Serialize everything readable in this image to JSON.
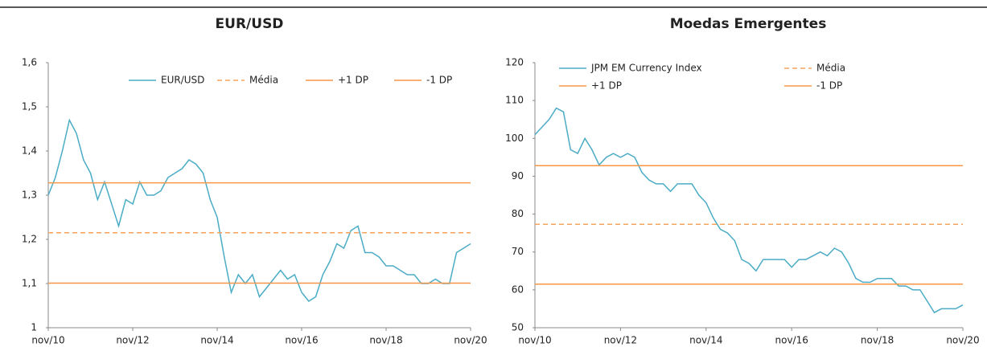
{
  "chart_data": [
    {
      "type": "line",
      "title": "EUR/USD",
      "categories": [
        "nov/10",
        null,
        null,
        null,
        null,
        null,
        null,
        null,
        null,
        null,
        null,
        null,
        "nov/12",
        null,
        null,
        null,
        null,
        null,
        null,
        null,
        null,
        null,
        null,
        null,
        "nov/14",
        null,
        null,
        null,
        null,
        null,
        null,
        null,
        null,
        null,
        null,
        null,
        "nov/16",
        null,
        null,
        null,
        null,
        null,
        null,
        null,
        null,
        null,
        null,
        null,
        "nov/18",
        null,
        null,
        null,
        null,
        null,
        null,
        null,
        null,
        null,
        null,
        null,
        "nov/20"
      ],
      "ylim": [
        1,
        1.6
      ],
      "yticks": [
        1,
        {
          "value": 1.1,
          "label": "1,1"
        },
        {
          "value": 1.2,
          "label": "1,2"
        },
        {
          "value": 1.3,
          "label": "1,3"
        },
        {
          "value": 1.4,
          "label": "1,4"
        },
        {
          "value": 1.5,
          "label": "1,5"
        },
        {
          "value": 1.6,
          "label": "1,6"
        }
      ],
      "legend": "top-right",
      "series": [
        {
          "name": "EUR/USD",
          "color": "#4bacc6",
          "dashed": false,
          "values": [
            1.3,
            1.34,
            1.4,
            1.47,
            1.44,
            1.38,
            1.35,
            1.29,
            1.33,
            1.28,
            1.23,
            1.29,
            1.28,
            1.33,
            1.3,
            1.3,
            1.31,
            1.34,
            1.35,
            1.36,
            1.38,
            1.37,
            1.35,
            1.29,
            1.25,
            1.16,
            1.08,
            1.12,
            1.1,
            1.12,
            1.07,
            1.09,
            1.11,
            1.13,
            1.11,
            1.12,
            1.08,
            1.06,
            1.07,
            1.12,
            1.15,
            1.19,
            1.18,
            1.22,
            1.23,
            1.17,
            1.17,
            1.16,
            1.14,
            1.14,
            1.13,
            1.12,
            1.12,
            1.1,
            1.1,
            1.11,
            1.1,
            1.1,
            1.17,
            1.18,
            1.19
          ]
        },
        {
          "name": "Média",
          "color": "#f7a35c",
          "dashed": true,
          "values": [
            1.215,
            1.215,
            1.215,
            1.215,
            1.215,
            1.215,
            1.215,
            1.215,
            1.215,
            1.215,
            1.215,
            1.215,
            1.215,
            1.215,
            1.215,
            1.215,
            1.215,
            1.215,
            1.215,
            1.215,
            1.215,
            1.215,
            1.215,
            1.215,
            1.215,
            1.215,
            1.215,
            1.215,
            1.215,
            1.215,
            1.215,
            1.215,
            1.215,
            1.215,
            1.215,
            1.215,
            1.215,
            1.215,
            1.215,
            1.215,
            1.215,
            1.215,
            1.215,
            1.215,
            1.215,
            1.215,
            1.215,
            1.215,
            1.215,
            1.215,
            1.215,
            1.215,
            1.215,
            1.215,
            1.215,
            1.215,
            1.215,
            1.215,
            1.215,
            1.215,
            1.215
          ]
        },
        {
          "name": "+1 DP",
          "color": "#f79646",
          "dashed": false,
          "values": [
            1.328,
            1.328,
            1.328,
            1.328,
            1.328,
            1.328,
            1.328,
            1.328,
            1.328,
            1.328,
            1.328,
            1.328,
            1.328,
            1.328,
            1.328,
            1.328,
            1.328,
            1.328,
            1.328,
            1.328,
            1.328,
            1.328,
            1.328,
            1.328,
            1.328,
            1.328,
            1.328,
            1.328,
            1.328,
            1.328,
            1.328,
            1.328,
            1.328,
            1.328,
            1.328,
            1.328,
            1.328,
            1.328,
            1.328,
            1.328,
            1.328,
            1.328,
            1.328,
            1.328,
            1.328,
            1.328,
            1.328,
            1.328,
            1.328,
            1.328,
            1.328,
            1.328,
            1.328,
            1.328,
            1.328,
            1.328,
            1.328,
            1.328,
            1.328,
            1.328,
            1.328
          ]
        },
        {
          "name": "-1 DP",
          "color": "#f79646",
          "dashed": false,
          "values": [
            1.101,
            1.101,
            1.101,
            1.101,
            1.101,
            1.101,
            1.101,
            1.101,
            1.101,
            1.101,
            1.101,
            1.101,
            1.101,
            1.101,
            1.101,
            1.101,
            1.101,
            1.101,
            1.101,
            1.101,
            1.101,
            1.101,
            1.101,
            1.101,
            1.101,
            1.101,
            1.101,
            1.101,
            1.101,
            1.101,
            1.101,
            1.101,
            1.101,
            1.101,
            1.101,
            1.101,
            1.101,
            1.101,
            1.101,
            1.101,
            1.101,
            1.101,
            1.101,
            1.101,
            1.101,
            1.101,
            1.101,
            1.101,
            1.101,
            1.101,
            1.101,
            1.101,
            1.101,
            1.101,
            1.101,
            1.101,
            1.101,
            1.101,
            1.101,
            1.101,
            1.101
          ]
        }
      ]
    },
    {
      "type": "line",
      "title": "Moedas Emergentes",
      "categories": [
        "nov/10",
        null,
        null,
        null,
        null,
        null,
        null,
        null,
        null,
        null,
        null,
        null,
        "nov/12",
        null,
        null,
        null,
        null,
        null,
        null,
        null,
        null,
        null,
        null,
        null,
        "nov/14",
        null,
        null,
        null,
        null,
        null,
        null,
        null,
        null,
        null,
        null,
        null,
        "nov/16",
        null,
        null,
        null,
        null,
        null,
        null,
        null,
        null,
        null,
        null,
        null,
        "nov/18",
        null,
        null,
        null,
        null,
        null,
        null,
        null,
        null,
        null,
        null,
        null,
        "nov/20"
      ],
      "ylim": [
        50,
        120
      ],
      "yticks": [
        50,
        60,
        70,
        80,
        90,
        100,
        110,
        120
      ],
      "legend": "top",
      "series": [
        {
          "name": "JPM EM Currency Index",
          "color": "#4bacc6",
          "dashed": false,
          "values": [
            101,
            103,
            105,
            108,
            107,
            97,
            96,
            100,
            97,
            93,
            95,
            96,
            95,
            96,
            95,
            91,
            89,
            88,
            88,
            86,
            88,
            88,
            88,
            85,
            83,
            79,
            76,
            75,
            73,
            68,
            67,
            65,
            68,
            68,
            68,
            68,
            66,
            68,
            68,
            69,
            70,
            69,
            71,
            70,
            67,
            63,
            62,
            62,
            63,
            63,
            63,
            61,
            61,
            60,
            60,
            57,
            54,
            55,
            55,
            55,
            56
          ]
        },
        {
          "name": "Média",
          "color": "#f7a35c",
          "dashed": true,
          "values": [
            77.3,
            77.3,
            77.3,
            77.3,
            77.3,
            77.3,
            77.3,
            77.3,
            77.3,
            77.3,
            77.3,
            77.3,
            77.3,
            77.3,
            77.3,
            77.3,
            77.3,
            77.3,
            77.3,
            77.3,
            77.3,
            77.3,
            77.3,
            77.3,
            77.3,
            77.3,
            77.3,
            77.3,
            77.3,
            77.3,
            77.3,
            77.3,
            77.3,
            77.3,
            77.3,
            77.3,
            77.3,
            77.3,
            77.3,
            77.3,
            77.3,
            77.3,
            77.3,
            77.3,
            77.3,
            77.3,
            77.3,
            77.3,
            77.3,
            77.3,
            77.3,
            77.3,
            77.3,
            77.3,
            77.3,
            77.3,
            77.3,
            77.3,
            77.3,
            77.3,
            77.3
          ]
        },
        {
          "name": "+1 DP",
          "color": "#f79646",
          "dashed": false,
          "values": [
            92.8,
            92.8,
            92.8,
            92.8,
            92.8,
            92.8,
            92.8,
            92.8,
            92.8,
            92.8,
            92.8,
            92.8,
            92.8,
            92.8,
            92.8,
            92.8,
            92.8,
            92.8,
            92.8,
            92.8,
            92.8,
            92.8,
            92.8,
            92.8,
            92.8,
            92.8,
            92.8,
            92.8,
            92.8,
            92.8,
            92.8,
            92.8,
            92.8,
            92.8,
            92.8,
            92.8,
            92.8,
            92.8,
            92.8,
            92.8,
            92.8,
            92.8,
            92.8,
            92.8,
            92.8,
            92.8,
            92.8,
            92.8,
            92.8,
            92.8,
            92.8,
            92.8,
            92.8,
            92.8,
            92.8,
            92.8,
            92.8,
            92.8,
            92.8,
            92.8,
            92.8
          ]
        },
        {
          "name": "-1 DP",
          "color": "#f79646",
          "dashed": false,
          "values": [
            61.5,
            61.5,
            61.5,
            61.5,
            61.5,
            61.5,
            61.5,
            61.5,
            61.5,
            61.5,
            61.5,
            61.5,
            61.5,
            61.5,
            61.5,
            61.5,
            61.5,
            61.5,
            61.5,
            61.5,
            61.5,
            61.5,
            61.5,
            61.5,
            61.5,
            61.5,
            61.5,
            61.5,
            61.5,
            61.5,
            61.5,
            61.5,
            61.5,
            61.5,
            61.5,
            61.5,
            61.5,
            61.5,
            61.5,
            61.5,
            61.5,
            61.5,
            61.5,
            61.5,
            61.5,
            61.5,
            61.5,
            61.5,
            61.5,
            61.5,
            61.5,
            61.5,
            61.5,
            61.5,
            61.5,
            61.5,
            61.5,
            61.5,
            61.5,
            61.5,
            61.5
          ]
        }
      ]
    }
  ]
}
